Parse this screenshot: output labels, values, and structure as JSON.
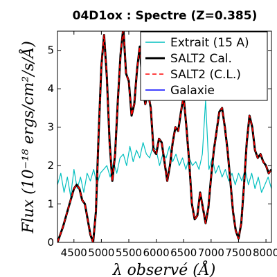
{
  "chart_data": {
    "type": "line",
    "title": "04D1ox : Spectre (Z=0.385)",
    "xlabel": "λ observé (Å)",
    "ylabel": "Flux (10⁻¹⁸ ergs/cm²/s/Å)",
    "xlim": [
      4200,
      8100
    ],
    "ylim": [
      0,
      5.5
    ],
    "xticks": [
      4500,
      5000,
      5500,
      6000,
      6500,
      7000,
      7500,
      8000
    ],
    "yticks": [
      0,
      1,
      2,
      3,
      4,
      5
    ],
    "legend_position": "top-right",
    "grid": false,
    "series": [
      {
        "name": "Extrait (15 A)",
        "color": "#00bfbf",
        "style": "solid",
        "x": [
          4200,
          4260,
          4320,
          4380,
          4440,
          4500,
          4560,
          4620,
          4680,
          4740,
          4800,
          4860,
          4920,
          4980,
          5040,
          5100,
          5160,
          5220,
          5280,
          5340,
          5400,
          5460,
          5520,
          5580,
          5640,
          5700,
          5760,
          5820,
          5880,
          5940,
          6000,
          6060,
          6120,
          6180,
          6240,
          6300,
          6360,
          6420,
          6480,
          6540,
          6600,
          6660,
          6720,
          6780,
          6840,
          6900,
          6960,
          7020,
          7080,
          7140,
          7200,
          7260,
          7320,
          7380,
          7440,
          7500,
          7560,
          7620,
          7680,
          7740,
          7800,
          7860,
          7920,
          7980,
          8040,
          8100
        ],
        "y": [
          1.5,
          1.8,
          1.3,
          1.7,
          1.2,
          1.9,
          1.4,
          1.7,
          1.3,
          1.8,
          1.6,
          1.9,
          1.5,
          1.8,
          1.9,
          2.0,
          1.7,
          2.1,
          1.8,
          2.2,
          2.3,
          2.0,
          2.5,
          2.1,
          2.4,
          2.2,
          2.6,
          2.3,
          2.2,
          2.5,
          2.4,
          2.0,
          2.3,
          2.2,
          2.5,
          2.1,
          2.3,
          2.0,
          2.2,
          1.9,
          2.2,
          2.0,
          2.1,
          1.9,
          2.3,
          3.7,
          1.9,
          2.2,
          1.8,
          2.0,
          1.7,
          1.9,
          1.6,
          1.8,
          1.5,
          1.8,
          1.6,
          1.9,
          1.5,
          1.8,
          1.4,
          1.7,
          1.3,
          1.5,
          1.7,
          1.4
        ]
      },
      {
        "name": "SALT2 Cal.",
        "color": "#000000",
        "style": "solid",
        "x": [
          4200,
          4300,
          4400,
          4500,
          4550,
          4600,
          4650,
          4700,
          4750,
          4800,
          4850,
          4900,
          4950,
          5000,
          5050,
          5100,
          5150,
          5200,
          5250,
          5300,
          5350,
          5400,
          5450,
          5500,
          5550,
          5600,
          5650,
          5700,
          5750,
          5800,
          5850,
          5900,
          5950,
          6000,
          6050,
          6100,
          6150,
          6200,
          6250,
          6300,
          6350,
          6400,
          6450,
          6500,
          6550,
          6600,
          6650,
          6700,
          6750,
          6800,
          6850,
          6900,
          6950,
          7000,
          7050,
          7100,
          7150,
          7200,
          7250,
          7300,
          7350,
          7400,
          7450,
          7500,
          7550,
          7600,
          7650,
          7700,
          7750,
          7800,
          7850,
          7900,
          7950,
          8000,
          8050,
          8100
        ],
        "y": [
          0.0,
          0.4,
          0.9,
          1.4,
          1.5,
          1.4,
          1.1,
          1.0,
          0.6,
          0.2,
          0.0,
          0.8,
          2.8,
          4.6,
          5.4,
          4.3,
          2.6,
          1.6,
          2.3,
          3.7,
          4.9,
          5.6,
          4.4,
          4.2,
          3.3,
          3.6,
          4.5,
          5.1,
          4.1,
          3.6,
          3.9,
          3.5,
          2.4,
          2.3,
          2.7,
          2.6,
          2.1,
          1.6,
          2.0,
          2.6,
          3.0,
          2.9,
          3.4,
          3.8,
          3.0,
          2.1,
          1.0,
          0.6,
          0.7,
          1.3,
          0.9,
          0.5,
          0.9,
          1.7,
          2.4,
          2.9,
          3.4,
          3.5,
          3.0,
          2.4,
          1.6,
          0.8,
          0.3,
          0.1,
          0.5,
          1.5,
          2.6,
          3.3,
          3.0,
          2.4,
          2.2,
          2.3,
          2.1,
          2.0,
          1.8,
          1.9
        ]
      },
      {
        "name": "SALT2 (C.L.)",
        "color": "#ff0000",
        "style": "dashed",
        "x": [
          4200,
          4300,
          4400,
          4500,
          4550,
          4600,
          4650,
          4700,
          4750,
          4800,
          4850,
          4900,
          4950,
          5000,
          5050,
          5100,
          5150,
          5200,
          5250,
          5300,
          5350,
          5400,
          5450,
          5500,
          5550,
          5600,
          5650,
          5700,
          5750,
          5800,
          5850,
          5900,
          5950,
          6000,
          6050,
          6100,
          6150,
          6200,
          6250,
          6300,
          6350,
          6400,
          6450,
          6500,
          6550,
          6600,
          6650,
          6700,
          6750,
          6800,
          6850,
          6900,
          6950,
          7000,
          7050,
          7100,
          7150,
          7200,
          7250,
          7300,
          7350,
          7400,
          7450,
          7500,
          7550,
          7600,
          7650,
          7700,
          7750,
          7800,
          7850,
          7900,
          7950,
          8000,
          8050,
          8100
        ],
        "y": [
          0.0,
          0.4,
          0.9,
          1.4,
          1.5,
          1.4,
          1.1,
          1.0,
          0.6,
          0.2,
          0.0,
          0.8,
          2.8,
          4.6,
          5.4,
          4.3,
          2.6,
          1.6,
          2.3,
          3.7,
          4.9,
          5.6,
          4.4,
          4.2,
          3.3,
          3.6,
          4.5,
          5.1,
          4.1,
          3.6,
          3.9,
          3.5,
          2.4,
          2.3,
          2.7,
          2.6,
          2.1,
          1.6,
          2.0,
          2.6,
          3.0,
          2.9,
          3.4,
          3.8,
          3.0,
          2.1,
          1.0,
          0.6,
          0.7,
          1.3,
          0.9,
          0.5,
          0.9,
          1.7,
          2.4,
          2.9,
          3.4,
          3.5,
          3.0,
          2.4,
          1.6,
          0.8,
          0.3,
          0.1,
          0.5,
          1.5,
          2.6,
          3.3,
          3.0,
          2.4,
          2.2,
          2.3,
          2.1,
          2.0,
          1.8,
          1.9
        ]
      },
      {
        "name": "Galaxie",
        "color": "#0000ff",
        "style": "solid",
        "x": [],
        "y": []
      }
    ]
  }
}
